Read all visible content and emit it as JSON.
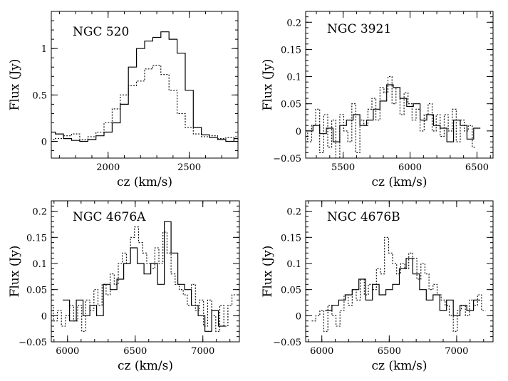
{
  "chart_data": [
    {
      "type": "line",
      "title": "NGC 520",
      "xlabel": "cz (km/s)",
      "ylabel": "Flux (Jy)",
      "xlim": [
        1650,
        2800
      ],
      "ylim": [
        -0.18,
        1.4
      ],
      "xticks": [
        {
          "v": 2000,
          "label": "2000"
        },
        {
          "v": 2500,
          "label": "2500"
        }
      ],
      "yticks": [
        {
          "v": 0,
          "label": "0"
        },
        {
          "v": 0.5,
          "label": "0.5"
        },
        {
          "v": 1,
          "label": "1"
        }
      ],
      "series": [
        {
          "style": "solid",
          "x": [
            1650,
            1700,
            1750,
            1800,
            1850,
            1900,
            1950,
            2000,
            2050,
            2100,
            2150,
            2200,
            2250,
            2300,
            2350,
            2400,
            2450,
            2500,
            2550,
            2600,
            2650,
            2700,
            2750,
            2800
          ],
          "y": [
            0.1,
            0.08,
            0.03,
            0.01,
            0.0,
            0.02,
            0.06,
            0.1,
            0.2,
            0.4,
            0.8,
            1.0,
            1.08,
            1.12,
            1.18,
            1.1,
            0.95,
            0.55,
            0.15,
            0.07,
            0.04,
            0.02,
            0.0,
            0.03
          ]
        },
        {
          "style": "dotted",
          "x": [
            1650,
            1700,
            1750,
            1800,
            1850,
            1900,
            1950,
            2000,
            2050,
            2100,
            2150,
            2200,
            2250,
            2300,
            2350,
            2400,
            2450,
            2500,
            2550,
            2600,
            2650,
            2700,
            2750,
            2800
          ],
          "y": [
            0.02,
            0.03,
            0.06,
            0.08,
            0.02,
            0.05,
            0.1,
            0.2,
            0.35,
            0.5,
            0.6,
            0.65,
            0.78,
            0.82,
            0.72,
            0.55,
            0.3,
            0.15,
            0.08,
            0.05,
            0.06,
            0.03,
            0.04,
            0.05
          ]
        }
      ]
    },
    {
      "type": "line",
      "title": "NGC 3921",
      "xlabel": "cz (km/s)",
      "ylabel": "Flux (Jy)",
      "xlim": [
        5220,
        6620
      ],
      "ylim": [
        -0.05,
        0.22
      ],
      "xticks": [
        {
          "v": 5500,
          "label": "5500"
        },
        {
          "v": 6000,
          "label": "6000"
        },
        {
          "v": 6500,
          "label": "6500"
        }
      ],
      "yticks": [
        {
          "v": -0.05,
          "label": "−0.05"
        },
        {
          "v": 0,
          "label": "0"
        },
        {
          "v": 0.05,
          "label": "0.05"
        },
        {
          "v": 0.1,
          "label": "0.1"
        },
        {
          "v": 0.15,
          "label": "0.15"
        },
        {
          "v": 0.2,
          "label": "0.2"
        }
      ],
      "series": [
        {
          "style": "solid",
          "x": [
            5250,
            5300,
            5350,
            5400,
            5450,
            5500,
            5550,
            5600,
            5650,
            5700,
            5750,
            5800,
            5850,
            5900,
            5950,
            6000,
            6050,
            6100,
            6150,
            6200,
            6250,
            6300,
            6350,
            6400,
            6450,
            6500
          ],
          "y": [
            0.0,
            0.01,
            -0.005,
            0.005,
            -0.02,
            0.01,
            0.02,
            0.03,
            0.01,
            0.02,
            0.04,
            0.055,
            0.085,
            0.08,
            0.06,
            0.045,
            0.05,
            0.02,
            0.03,
            0.01,
            0.005,
            -0.02,
            0.02,
            0.01,
            -0.015,
            0.005
          ]
        },
        {
          "style": "dotted",
          "x": [
            5220,
            5250,
            5280,
            5310,
            5340,
            5370,
            5400,
            5430,
            5460,
            5490,
            5520,
            5550,
            5580,
            5610,
            5640,
            5670,
            5700,
            5730,
            5760,
            5790,
            5820,
            5850,
            5880,
            5910,
            5940,
            5970,
            6000,
            6030,
            6060,
            6090,
            6120,
            6150,
            6180,
            6210,
            6240,
            6270,
            6300,
            6330,
            6360,
            6390,
            6420,
            6450,
            6480
          ],
          "y": [
            0.0,
            -0.02,
            0.01,
            0.04,
            -0.04,
            0.03,
            -0.03,
            0.02,
            -0.05,
            0.03,
            0.0,
            -0.02,
            0.05,
            -0.04,
            0.02,
            0.01,
            0.04,
            0.06,
            0.02,
            0.08,
            0.07,
            0.1,
            0.05,
            0.08,
            0.03,
            0.07,
            0.05,
            0.02,
            0.04,
            0.0,
            0.03,
            0.05,
            0.0,
            0.03,
            -0.01,
            0.03,
            0.0,
            0.04,
            -0.02,
            0.02,
            0.0,
            0.01,
            -0.03
          ]
        }
      ]
    },
    {
      "type": "line",
      "title": "NGC 4676A",
      "xlabel": "cz (km/s)",
      "ylabel": "Flux (Jy)",
      "xlim": [
        5880,
        7270
      ],
      "ylim": [
        -0.05,
        0.22
      ],
      "xticks": [
        {
          "v": 6000,
          "label": "6000"
        },
        {
          "v": 6500,
          "label": "6500"
        },
        {
          "v": 7000,
          "label": "7000"
        }
      ],
      "yticks": [
        {
          "v": -0.05,
          "label": "−0.05"
        },
        {
          "v": 0,
          "label": "0"
        },
        {
          "v": 0.05,
          "label": "0.05"
        },
        {
          "v": 0.1,
          "label": "0.1"
        },
        {
          "v": 0.15,
          "label": "0.15"
        },
        {
          "v": 0.2,
          "label": "0.2"
        }
      ],
      "series": [
        {
          "style": "solid",
          "x": [
            5990,
            6040,
            6090,
            6140,
            6190,
            6240,
            6290,
            6340,
            6390,
            6440,
            6490,
            6540,
            6590,
            6640,
            6690,
            6740,
            6790,
            6840,
            6890,
            6940,
            6990,
            7040,
            7090,
            7140
          ],
          "y": [
            0.03,
            -0.01,
            0.03,
            0.0,
            0.02,
            0.0,
            0.06,
            0.05,
            0.07,
            0.1,
            0.13,
            0.1,
            0.08,
            0.1,
            0.06,
            0.18,
            0.12,
            0.06,
            0.05,
            0.02,
            0.0,
            -0.03,
            0.01,
            -0.02
          ]
        },
        {
          "style": "dotted",
          "x": [
            5880,
            5910,
            5940,
            5970,
            6000,
            6030,
            6060,
            6090,
            6120,
            6150,
            6180,
            6210,
            6240,
            6270,
            6300,
            6330,
            6360,
            6390,
            6420,
            6450,
            6480,
            6510,
            6540,
            6570,
            6600,
            6630,
            6660,
            6690,
            6720,
            6750,
            6780,
            6810,
            6840,
            6870,
            6900,
            6930,
            6960,
            6990,
            7020,
            7050,
            7080,
            7110,
            7140,
            7170,
            7200,
            7230
          ],
          "y": [
            0.02,
            -0.01,
            0.01,
            -0.02,
            0.0,
            0.02,
            -0.01,
            0.02,
            -0.03,
            0.03,
            0.01,
            0.05,
            0.02,
            0.06,
            0.04,
            0.08,
            0.06,
            0.1,
            0.12,
            0.1,
            0.15,
            0.17,
            0.14,
            0.12,
            0.1,
            0.09,
            0.13,
            0.1,
            0.16,
            0.12,
            0.08,
            0.06,
            0.05,
            0.04,
            0.02,
            0.06,
            0.01,
            0.03,
            -0.02,
            0.03,
            0.0,
            -0.03,
            0.02,
            -0.02,
            0.02,
            0.04
          ]
        }
      ]
    },
    {
      "type": "line",
      "title": "NGC 4676B",
      "xlabel": "cz (km/s)",
      "ylabel": "Flux (Jy)",
      "xlim": [
        5880,
        7270
      ],
      "ylim": [
        -0.05,
        0.22
      ],
      "xticks": [
        {
          "v": 6000,
          "label": "6000"
        },
        {
          "v": 6500,
          "label": "6500"
        },
        {
          "v": 7000,
          "label": "7000"
        }
      ],
      "yticks": [
        {
          "v": -0.05,
          "label": "−0.05"
        },
        {
          "v": 0,
          "label": "0"
        },
        {
          "v": 0.05,
          "label": "0.05"
        },
        {
          "v": 0.1,
          "label": "0.1"
        },
        {
          "v": 0.15,
          "label": "0.15"
        },
        {
          "v": 0.2,
          "label": "0.2"
        }
      ],
      "series": [
        {
          "style": "solid",
          "x": [
            6050,
            6100,
            6150,
            6200,
            6250,
            6300,
            6350,
            6400,
            6450,
            6500,
            6550,
            6600,
            6650,
            6700,
            6750,
            6800,
            6850,
            6900,
            6950,
            7000,
            7050,
            7100,
            7150
          ],
          "y": [
            0.01,
            0.02,
            0.03,
            0.04,
            0.05,
            0.07,
            0.03,
            0.06,
            0.04,
            0.05,
            0.06,
            0.09,
            0.11,
            0.08,
            0.05,
            0.03,
            0.04,
            0.01,
            0.03,
            0.0,
            0.02,
            0.01,
            0.03
          ]
        },
        {
          "style": "dotted",
          "x": [
            5940,
            5970,
            6000,
            6030,
            6060,
            6090,
            6120,
            6150,
            6180,
            6210,
            6240,
            6270,
            6300,
            6330,
            6360,
            6390,
            6420,
            6450,
            6480,
            6510,
            6540,
            6570,
            6600,
            6630,
            6660,
            6690,
            6720,
            6750,
            6780,
            6810,
            6840,
            6870,
            6900,
            6930,
            6960,
            6990,
            7020,
            7050,
            7080,
            7110,
            7140,
            7170,
            7200
          ],
          "y": [
            -0.01,
            0.0,
            0.01,
            -0.03,
            0.02,
            0.0,
            -0.02,
            0.01,
            0.04,
            0.02,
            0.05,
            0.03,
            0.07,
            0.04,
            0.06,
            0.05,
            0.09,
            0.08,
            0.15,
            0.12,
            0.1,
            0.08,
            0.1,
            0.09,
            0.12,
            0.11,
            0.07,
            0.1,
            0.08,
            0.05,
            0.06,
            0.04,
            0.03,
            0.02,
            0.0,
            -0.03,
            0.01,
            0.02,
            0.0,
            0.03,
            0.02,
            0.04,
            0.01
          ]
        }
      ]
    }
  ]
}
